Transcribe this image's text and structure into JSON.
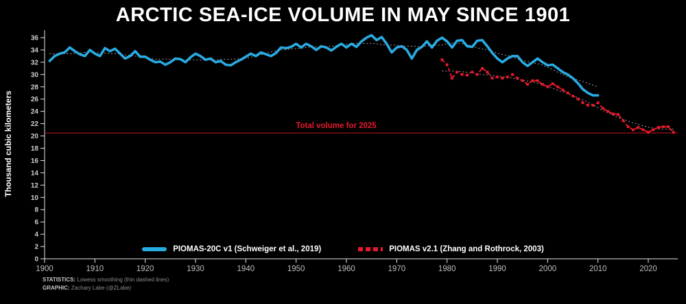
{
  "title": "ARCTIC SEA-ICE VOLUME IN MAY SINCE 1901",
  "ylabel": "Thousand cubic kilometers",
  "colors": {
    "background": "#000000",
    "blue": "#29ABE2",
    "red": "#E8192D",
    "axis": "#E8E8E8",
    "smooth": "#D9D9D9"
  },
  "footer": {
    "statistics_label": "STATISTICS:",
    "statistics_text": " Lowess smoothing (thin dashed lines)",
    "graphic_label": "GRAPHIC:",
    "graphic_text": " Zachary Labe (@ZLabe)"
  },
  "chart_data": {
    "type": "line",
    "title": "ARCTIC SEA-ICE VOLUME IN MAY SINCE 1901",
    "xlabel": "",
    "ylabel": "Thousand cubic kilometers",
    "ylim": [
      0,
      36
    ],
    "ytick_step": 2,
    "xticks": [
      1900,
      1910,
      1920,
      1930,
      1940,
      1950,
      1960,
      1970,
      1980,
      1990,
      2000,
      2010,
      2020
    ],
    "reference_line": {
      "value": 20.5,
      "label": "Total volume for 2025",
      "color": "#E8192D"
    },
    "smoothing_note": "Lowess smoothing (thin dashed lines)",
    "series": [
      {
        "name": "PIOMAS-20C v1 (Schweiger et al., 2019)",
        "color": "#29ABE2",
        "style": "solid",
        "start_year": 1901,
        "values": [
          32.2,
          33.0,
          33.4,
          33.6,
          34.4,
          33.8,
          33.3,
          33.0,
          34.0,
          33.4,
          33.0,
          34.3,
          33.8,
          34.2,
          33.4,
          32.6,
          33.0,
          33.8,
          32.9,
          32.9,
          32.4,
          32.0,
          32.1,
          31.6,
          32.0,
          32.6,
          32.5,
          32.0,
          32.8,
          33.4,
          33.0,
          32.4,
          32.6,
          32.0,
          32.2,
          31.6,
          31.5,
          32.0,
          32.4,
          32.9,
          33.4,
          33.0,
          33.6,
          33.3,
          33.0,
          33.5,
          34.4,
          34.3,
          34.5,
          35.0,
          34.4,
          35.0,
          34.6,
          34.0,
          34.6,
          34.4,
          33.9,
          34.5,
          35.0,
          34.4,
          35.0,
          34.5,
          35.4,
          36.0,
          36.4,
          35.6,
          36.1,
          35.0,
          33.6,
          34.4,
          34.6,
          34.0,
          32.6,
          34.0,
          34.5,
          35.4,
          34.4,
          35.5,
          36.0,
          35.4,
          34.4,
          35.5,
          35.6,
          34.6,
          34.5,
          35.5,
          35.6,
          34.6,
          33.5,
          32.6,
          32.0,
          32.6,
          33.0,
          33.0,
          32.0,
          31.4,
          32.0,
          32.6,
          32.0,
          31.5,
          31.6,
          31.0,
          30.4,
          30.0,
          29.4,
          28.6,
          27.6,
          27.0,
          26.6,
          26.6
        ]
      },
      {
        "name": "PIOMAS v2.1 (Zhang and Rothrock, 2003)",
        "color": "#E8192D",
        "style": "dashed-square",
        "start_year": 1979,
        "values": [
          32.4,
          31.6,
          29.4,
          30.4,
          30.0,
          29.9,
          30.4,
          30.0,
          31.0,
          30.4,
          29.4,
          29.6,
          29.4,
          29.6,
          30.0,
          29.4,
          29.0,
          28.4,
          29.0,
          29.0,
          28.4,
          28.0,
          28.5,
          28.0,
          27.5,
          27.0,
          26.5,
          26.0,
          25.4,
          25.0,
          25.0,
          25.4,
          24.5,
          24.0,
          23.6,
          23.5,
          22.5,
          21.5,
          21.0,
          21.4,
          21.0,
          20.6,
          21.0,
          21.4,
          21.5,
          21.5,
          20.6
        ]
      }
    ],
    "legend_position": "bottom-center"
  }
}
